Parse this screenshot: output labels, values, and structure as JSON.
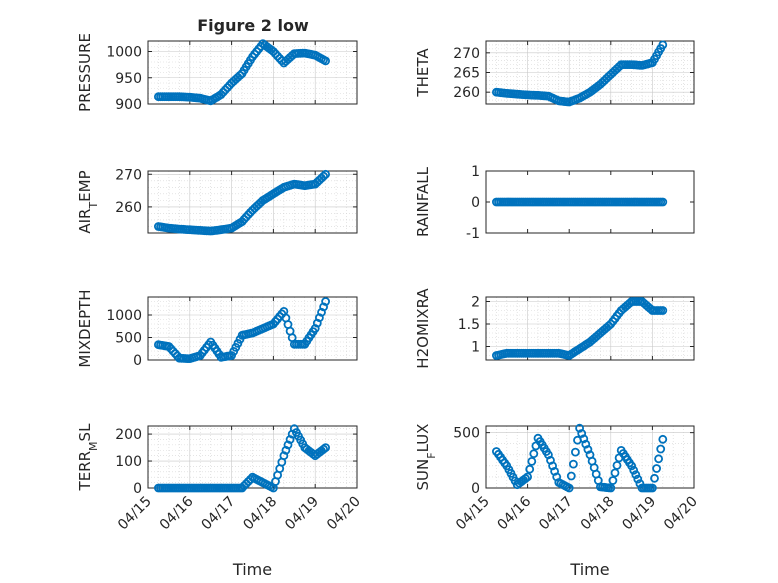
{
  "title": "Figure 2 low",
  "xlabel": "Time",
  "x_tick_labels": [
    "04/15",
    "04/16",
    "04/17",
    "04/18",
    "04/19",
    "04/20"
  ],
  "marker_color": "#0072BD",
  "chart_data": [
    {
      "type": "scatter",
      "ylabel": "PRESSURE",
      "grid": true,
      "xlim": [
        "04/15",
        "04/20"
      ],
      "ylim": [
        900,
        1020
      ],
      "yticks": [
        900,
        950,
        1000
      ],
      "x": [
        "04/15 06:00",
        "04/15 12:00",
        "04/15 18:00",
        "04/16 00:00",
        "04/16 06:00",
        "04/16 12:00",
        "04/16 18:00",
        "04/17 00:00",
        "04/17 06:00",
        "04/17 12:00",
        "04/17 18:00",
        "04/18 00:00",
        "04/18 06:00",
        "04/18 12:00",
        "04/18 18:00",
        "04/19 00:00",
        "04/19 06:00"
      ],
      "y": [
        914,
        914,
        914,
        913,
        911,
        906,
        918,
        940,
        958,
        990,
        1015,
        1000,
        978,
        996,
        997,
        993,
        982
      ]
    },
    {
      "type": "scatter",
      "ylabel": "THETA",
      "grid": true,
      "xlim": [
        "04/15",
        "04/20"
      ],
      "ylim": [
        257,
        273
      ],
      "yticks": [
        260,
        265,
        270
      ],
      "x": [
        "04/15 06:00",
        "04/15 12:00",
        "04/15 18:00",
        "04/16 00:00",
        "04/16 06:00",
        "04/16 12:00",
        "04/16 18:00",
        "04/17 00:00",
        "04/17 06:00",
        "04/17 12:00",
        "04/17 18:00",
        "04/18 00:00",
        "04/18 06:00",
        "04/18 12:00",
        "04/18 18:00",
        "04/19 00:00",
        "04/19 06:00"
      ],
      "y": [
        260,
        259.7,
        259.5,
        259.3,
        259.2,
        259,
        257.8,
        257.5,
        258.5,
        260,
        262,
        264.5,
        267,
        267,
        266.8,
        267.5,
        272
      ]
    },
    {
      "type": "scatter",
      "ylabel": "AIR_TEMP",
      "grid": true,
      "xlim": [
        "04/15",
        "04/20"
      ],
      "ylim": [
        252,
        271
      ],
      "yticks": [
        260,
        270
      ],
      "x": [
        "04/15 06:00",
        "04/15 12:00",
        "04/15 18:00",
        "04/16 00:00",
        "04/16 06:00",
        "04/16 12:00",
        "04/16 18:00",
        "04/17 00:00",
        "04/17 06:00",
        "04/17 12:00",
        "04/17 18:00",
        "04/18 00:00",
        "04/18 06:00",
        "04/18 12:00",
        "04/18 18:00",
        "04/19 00:00",
        "04/19 06:00"
      ],
      "y": [
        254,
        253.5,
        253.2,
        253,
        252.8,
        252.6,
        253,
        253.5,
        255.5,
        259,
        262,
        264,
        266,
        267,
        266.5,
        267,
        270
      ]
    },
    {
      "type": "scatter",
      "ylabel": "RAINFALL",
      "grid": false,
      "xlim": [
        "04/15",
        "04/20"
      ],
      "ylim": [
        -1,
        1
      ],
      "yticks": [
        -1,
        0,
        1
      ],
      "x": [
        "04/15 06:00",
        "04/15 12:00",
        "04/15 18:00",
        "04/16 00:00",
        "04/16 06:00",
        "04/16 12:00",
        "04/16 18:00",
        "04/17 00:00",
        "04/17 06:00",
        "04/17 12:00",
        "04/17 18:00",
        "04/18 00:00",
        "04/18 06:00",
        "04/18 12:00",
        "04/18 18:00",
        "04/19 00:00",
        "04/19 06:00"
      ],
      "y": [
        0,
        0,
        0,
        0,
        0,
        0,
        0,
        0,
        0,
        0,
        0,
        0,
        0,
        0,
        0,
        0,
        0
      ]
    },
    {
      "type": "scatter",
      "ylabel": "MIXDEPTH",
      "grid": true,
      "xlim": [
        "04/15",
        "04/20"
      ],
      "ylim": [
        0,
        1400
      ],
      "yticks": [
        0,
        500,
        1000
      ],
      "x": [
        "04/15 06:00",
        "04/15 12:00",
        "04/15 18:00",
        "04/16 00:00",
        "04/16 06:00",
        "04/16 12:00",
        "04/16 18:00",
        "04/17 00:00",
        "04/17 06:00",
        "04/17 12:00",
        "04/17 18:00",
        "04/18 00:00",
        "04/18 06:00",
        "04/18 12:00",
        "04/18 18:00",
        "04/19 00:00",
        "04/19 06:00"
      ],
      "y": [
        340,
        300,
        40,
        30,
        100,
        400,
        60,
        100,
        550,
        600,
        700,
        800,
        1080,
        350,
        350,
        700,
        1300
      ]
    },
    {
      "type": "scatter",
      "ylabel": "H2OMIXRA",
      "grid": true,
      "xlim": [
        "04/15",
        "04/20"
      ],
      "ylim": [
        0.7,
        2.1
      ],
      "yticks": [
        1,
        1.5,
        2
      ],
      "x": [
        "04/15 06:00",
        "04/15 12:00",
        "04/15 18:00",
        "04/16 00:00",
        "04/16 06:00",
        "04/16 12:00",
        "04/16 18:00",
        "04/17 00:00",
        "04/17 06:00",
        "04/17 12:00",
        "04/17 18:00",
        "04/18 00:00",
        "04/18 06:00",
        "04/18 12:00",
        "04/18 18:00",
        "04/19 00:00",
        "04/19 06:00"
      ],
      "y": [
        0.8,
        0.85,
        0.85,
        0.85,
        0.85,
        0.85,
        0.85,
        0.8,
        0.95,
        1.1,
        1.3,
        1.5,
        1.8,
        2.0,
        2.0,
        1.8,
        1.8
      ]
    },
    {
      "type": "scatter",
      "ylabel": "TERR_MSL",
      "grid": true,
      "xlim": [
        "04/15",
        "04/20"
      ],
      "ylim": [
        0,
        230
      ],
      "yticks": [
        0,
        100,
        200
      ],
      "x": [
        "04/15 06:00",
        "04/15 12:00",
        "04/15 18:00",
        "04/16 00:00",
        "04/16 06:00",
        "04/16 12:00",
        "04/16 18:00",
        "04/17 00:00",
        "04/17 06:00",
        "04/17 12:00",
        "04/17 18:00",
        "04/18 00:00",
        "04/18 06:00",
        "04/18 12:00",
        "04/18 18:00",
        "04/19 00:00",
        "04/19 06:00"
      ],
      "y": [
        0,
        0,
        0,
        0,
        0,
        0,
        0,
        0,
        0,
        40,
        20,
        0,
        120,
        220,
        150,
        120,
        150
      ]
    },
    {
      "type": "scatter",
      "ylabel": "SUN_FLUX",
      "grid": true,
      "xlim": [
        "04/15",
        "04/20"
      ],
      "ylim": [
        0,
        560
      ],
      "yticks": [
        0,
        500
      ],
      "x": [
        "04/15 06:00",
        "04/15 12:00",
        "04/15 18:00",
        "04/16 00:00",
        "04/16 06:00",
        "04/16 12:00",
        "04/16 18:00",
        "04/17 00:00",
        "04/17 06:00",
        "04/17 12:00",
        "04/17 18:00",
        "04/18 00:00",
        "04/18 06:00",
        "04/18 12:00",
        "04/18 18:00",
        "04/19 00:00",
        "04/19 06:00"
      ],
      "y": [
        330,
        200,
        30,
        100,
        450,
        300,
        50,
        0,
        540,
        300,
        10,
        0,
        340,
        200,
        0,
        0,
        440
      ]
    }
  ]
}
